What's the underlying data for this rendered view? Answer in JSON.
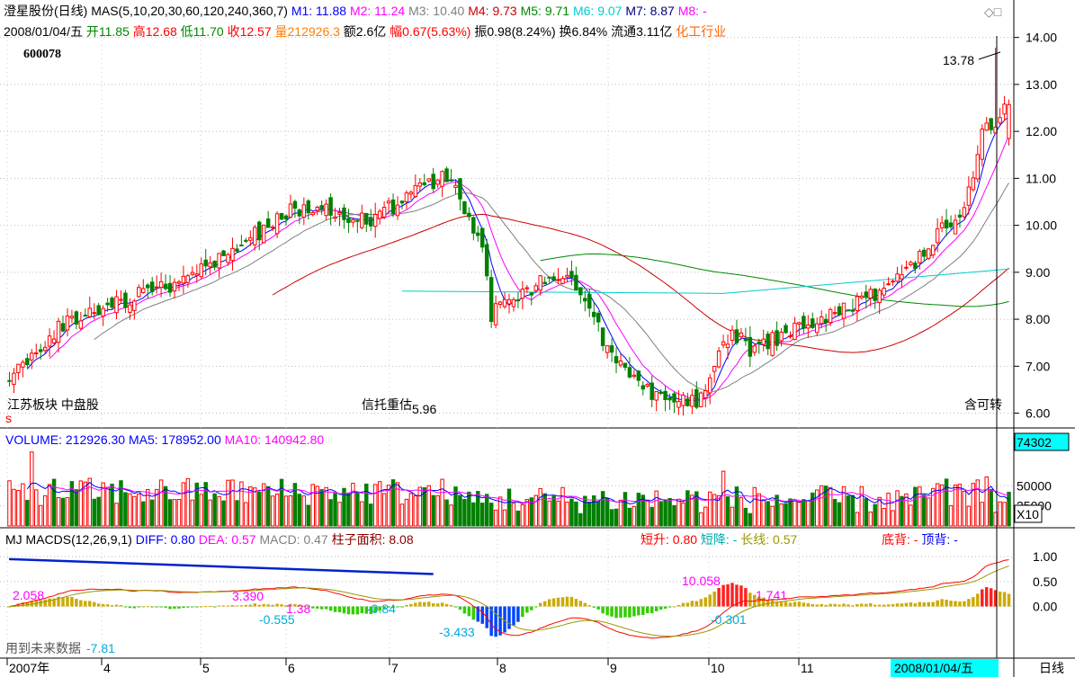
{
  "header": {
    "row1": [
      {
        "text": "澄星股份(日线) MAS(5,10,20,30,60,120,240,360,7)",
        "color": "#000000"
      },
      {
        "text": " M1: 11.88",
        "color": "#0000ff"
      },
      {
        "text": " M2: 11.24",
        "color": "#ff00ff"
      },
      {
        "text": " M3: 10.40",
        "color": "#808080"
      },
      {
        "text": " M4: 9.73",
        "color": "#cc0000"
      },
      {
        "text": " M5: 9.71",
        "color": "#008800"
      },
      {
        "text": " M6: 9.07",
        "color": "#00cccc"
      },
      {
        "text": " M7: 8.87",
        "color": "#000080"
      },
      {
        "text": " M8: -",
        "color": "#ff00ff"
      }
    ],
    "row2": [
      {
        "text": "2008/01/04/五 ",
        "color": "#000000"
      },
      {
        "text": "开11.85",
        "color": "#008800"
      },
      {
        "text": " 高12.68",
        "color": "#ff0000"
      },
      {
        "text": " 低11.70",
        "color": "#008800"
      },
      {
        "text": " 收12.57",
        "color": "#ff0000"
      },
      {
        "text": " 量212926.3",
        "color": "#ff7f00"
      },
      {
        "text": " 额2.6亿",
        "color": "#000000"
      },
      {
        "text": " 幅0.67(5.63%)",
        "color": "#ff0000"
      },
      {
        "text": " 振0.98(8.24%)",
        "color": "#000000"
      },
      {
        "text": " 换6.84%",
        "color": "#000000"
      },
      {
        "text": " 流通3.11亿",
        "color": "#000000"
      },
      {
        "text": " 化工行业",
        "color": "#ff6600"
      }
    ],
    "code": "600078",
    "window_icons": "◇□"
  },
  "price_panel": {
    "annotations": {
      "left_block": "江苏板块  中盘股",
      "mid_block": "信托重估",
      "low_value": "5.96",
      "high_value": "13.78",
      "right_block": "含可转",
      "marker": "s"
    }
  },
  "volume_panel": {
    "legend": [
      {
        "text": "VOLUME: 212926.30",
        "color": "#0000ff"
      },
      {
        "text": " MA5: 178952.00",
        "color": "#0000ff"
      },
      {
        "text": " MA10: 140942.80",
        "color": "#ff00ff"
      }
    ],
    "current_box": "74302",
    "multiplier": "X10"
  },
  "macd_panel": {
    "legend": [
      {
        "text": "MJ  MACDS(12,26,9,1)",
        "color": "#000000"
      },
      {
        "text": " DIFF: 0.80",
        "color": "#0000ff"
      },
      {
        "text": " DEA: 0.57",
        "color": "#ff00ff"
      },
      {
        "text": " MACD: 0.47",
        "color": "#808080"
      },
      {
        "text": " 柱子面积: 8.08",
        "color": "#8b0000"
      }
    ],
    "signals": [
      {
        "text": "短升: 0.80",
        "color": "#ff0000"
      },
      {
        "text": " 短降: -",
        "color": "#00aaaa"
      },
      {
        "text": " 长线: 0.57",
        "color": "#999900"
      },
      {
        "text": "底背: -",
        "color": "#ff0000"
      },
      {
        "text": " 顶背: -",
        "color": "#0000ff"
      }
    ],
    "labels": [
      {
        "text": "2.058",
        "color": "#ff00ff"
      },
      {
        "text": "3.390",
        "color": "#ff00ff"
      },
      {
        "text": "-0.555",
        "color": "#00aadd"
      },
      {
        "text": "1.38",
        "color": "#ff00ff"
      },
      {
        "text": "-0.84",
        "color": "#00aadd"
      },
      {
        "text": "-3.433",
        "color": "#00aadd"
      },
      {
        "text": "10.058",
        "color": "#ff00ff"
      },
      {
        "text": "1.741",
        "color": "#ff00ff"
      },
      {
        "text": "-0.301",
        "color": "#00aadd"
      },
      {
        "text": "-7.81",
        "color": "#00aadd"
      }
    ],
    "footer_note": "用到未来数据"
  },
  "x_axis": {
    "labels": [
      "2007年",
      "4",
      "5",
      "6",
      "7",
      "8",
      "9",
      "10",
      "11"
    ],
    "current_date": "2008/01/04/五",
    "right_button": "日线"
  },
  "chart_data": [
    {
      "type": "candlestick",
      "title": "澄星股份(日线)",
      "ylim": [
        5.8,
        14.3
      ],
      "yticks": [
        "14.00",
        "13.00",
        "12.00",
        "11.00",
        "10.00",
        "9.00",
        "8.00",
        "7.00",
        "6.00"
      ],
      "grid": true,
      "num_bars": 225,
      "close_anchors": [
        [
          0,
          6.8
        ],
        [
          6,
          7.4
        ],
        [
          12,
          7.9
        ],
        [
          20,
          8.2
        ],
        [
          28,
          8.5
        ],
        [
          35,
          8.7
        ],
        [
          45,
          9.1
        ],
        [
          55,
          9.8
        ],
        [
          63,
          10.3
        ],
        [
          70,
          10.5
        ],
        [
          75,
          10.2
        ],
        [
          80,
          10.1
        ],
        [
          88,
          10.5
        ],
        [
          95,
          10.9
        ],
        [
          98,
          11.1
        ],
        [
          103,
          10.2
        ],
        [
          106,
          9.4
        ],
        [
          108,
          8.1
        ],
        [
          112,
          8.4
        ],
        [
          118,
          8.7
        ],
        [
          122,
          9.0
        ],
        [
          126,
          8.8
        ],
        [
          130,
          8.2
        ],
        [
          134,
          7.4
        ],
        [
          138,
          6.9
        ],
        [
          142,
          6.6
        ],
        [
          146,
          6.3
        ],
        [
          150,
          6.2
        ],
        [
          154,
          6.3
        ],
        [
          158,
          7.0
        ],
        [
          162,
          7.8
        ],
        [
          166,
          7.3
        ],
        [
          170,
          7.5
        ],
        [
          176,
          7.8
        ],
        [
          182,
          8.0
        ],
        [
          188,
          8.3
        ],
        [
          194,
          8.5
        ],
        [
          200,
          9.0
        ],
        [
          205,
          9.4
        ],
        [
          210,
          10.0
        ],
        [
          214,
          10.3
        ],
        [
          218,
          12.0
        ],
        [
          222,
          12.3
        ],
        [
          224,
          12.57
        ]
      ],
      "notable": {
        "low": 5.96,
        "high": 13.78,
        "last": {
          "open": 11.85,
          "high": 12.68,
          "low": 11.7,
          "close": 12.57
        }
      },
      "series": [
        {
          "name": "M1",
          "value": 11.88,
          "color": "#0000ff"
        },
        {
          "name": "M2",
          "value": 11.24,
          "color": "#ff00ff"
        },
        {
          "name": "M3",
          "value": 10.4,
          "color": "#808080"
        },
        {
          "name": "M4",
          "value": 9.73,
          "color": "#cc0000"
        },
        {
          "name": "M5",
          "value": 9.71,
          "color": "#008800"
        },
        {
          "name": "M6",
          "value": 9.07,
          "color": "#00cccc"
        },
        {
          "name": "M7",
          "value": 8.87,
          "color": "#000080"
        }
      ]
    },
    {
      "type": "bar",
      "title": "VOLUME",
      "ylim": [
        0,
        95000
      ],
      "yticks": [
        "50000",
        "25000"
      ],
      "series": [
        {
          "name": "VOLUME",
          "value": 212926.3
        },
        {
          "name": "MA5",
          "value": 178952.0
        },
        {
          "name": "MA10",
          "value": 140942.8
        }
      ]
    },
    {
      "type": "bar",
      "title": "MACDS(12,26,9,1)",
      "ylim": [
        -1.0,
        1.2
      ],
      "yticks": [
        "1.00",
        "0.50",
        "0.00"
      ],
      "series": [
        {
          "name": "DIFF",
          "value": 0.8
        },
        {
          "name": "DEA",
          "value": 0.57
        },
        {
          "name": "MACD",
          "value": 0.47
        }
      ]
    }
  ]
}
